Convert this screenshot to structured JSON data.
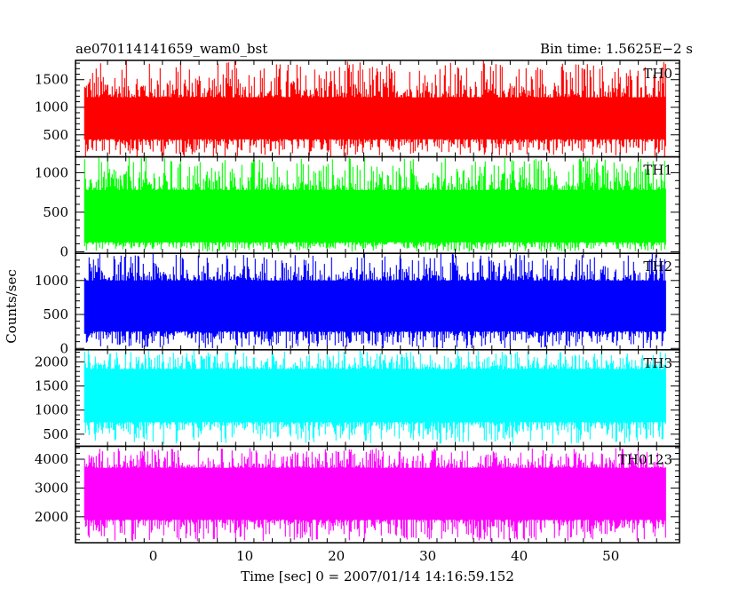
{
  "chart_data": {
    "type": "line",
    "title": "ae070114141659_wam0_bst",
    "subtitle": "Bin time: 1.5625E−2 s",
    "xlabel": "Time [sec] 0 = 2007/01/14 14:16:59.152",
    "ylabel": "Counts/sec",
    "xlim": [
      -8.5,
      57.5
    ],
    "x_ticks": [
      0,
      10,
      20,
      30,
      40,
      50
    ],
    "x_range": [
      -7.5,
      56
    ],
    "grid": false,
    "panels": [
      {
        "name": "TH0",
        "color": "#ff0000",
        "ylim": [
          100,
          1850
        ],
        "y_ticks": [
          500,
          1000,
          1500
        ],
        "band": [
          420,
          1180
        ],
        "max": 1850,
        "min": 100
      },
      {
        "name": "TH1",
        "color": "#00ff00",
        "ylim": [
          -20,
          1200
        ],
        "y_ticks": [
          0,
          500,
          1000
        ],
        "band": [
          120,
          780
        ],
        "max": 1200,
        "min": 0
      },
      {
        "name": "TH2",
        "color": "#0000ff",
        "ylim": [
          -20,
          1400
        ],
        "y_ticks": [
          0,
          500,
          1000
        ],
        "band": [
          250,
          1000
        ],
        "max": 1400,
        "min": 0
      },
      {
        "name": "TH3",
        "color": "#00ffff",
        "ylim": [
          250,
          2250
        ],
        "y_ticks": [
          500,
          1000,
          1500,
          2000
        ],
        "band": [
          750,
          1850
        ],
        "max": 2250,
        "min": 300
      },
      {
        "name": "TH0123",
        "color": "#ff00ff",
        "ylim": [
          1100,
          4450
        ],
        "y_ticks": [
          2000,
          3000,
          4000
        ],
        "band": [
          1900,
          3700
        ],
        "max": 4400,
        "min": 1150
      }
    ]
  }
}
